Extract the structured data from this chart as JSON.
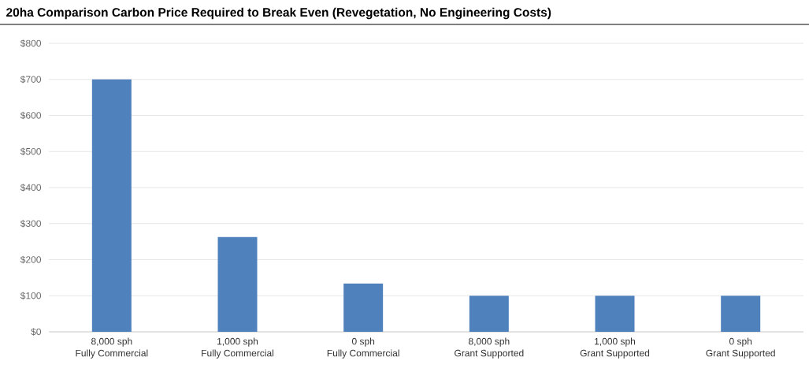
{
  "chart_data": {
    "type": "bar",
    "title": "20ha Comparison Carbon Price Required to Break Even (Revegetation, No Engineering Costs)",
    "categories": [
      "8,000 sph\nFully Commercial",
      "1,000 sph\nFully Commercial",
      "0 sph\nFully Commercial",
      "8,000 sph\nGrant Supported",
      "1,000 sph\nGrant Supported",
      "0 sph\nGrant Supported"
    ],
    "values": [
      700,
      263,
      134,
      100,
      100,
      100
    ],
    "color": "#4f81bd",
    "ylim": [
      0,
      800
    ],
    "yticks": [
      {
        "value": 0,
        "label": "$0"
      },
      {
        "value": 100,
        "label": "$100"
      },
      {
        "value": 200,
        "label": "$200"
      },
      {
        "value": 300,
        "label": "$300"
      },
      {
        "value": 400,
        "label": "$400"
      },
      {
        "value": 500,
        "label": "$500"
      },
      {
        "value": 600,
        "label": "$600"
      },
      {
        "value": 700,
        "label": "$700"
      },
      {
        "value": 800,
        "label": "$800"
      }
    ],
    "grid": "y"
  }
}
